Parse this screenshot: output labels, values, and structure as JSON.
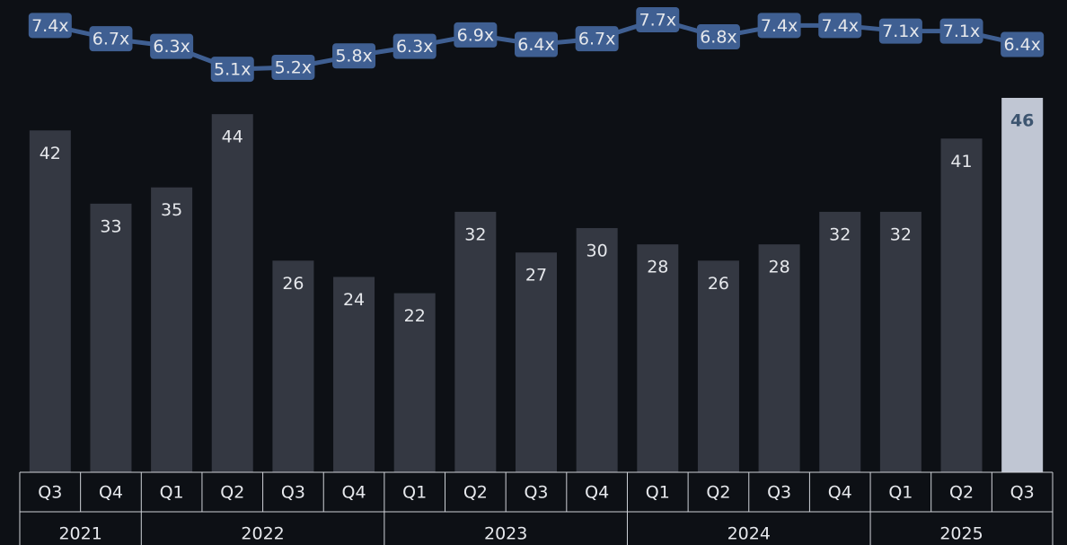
{
  "chart_data": {
    "type": "combo",
    "categories": [
      "Q3",
      "Q4",
      "Q1",
      "Q2",
      "Q3",
      "Q4",
      "Q1",
      "Q2",
      "Q3",
      "Q4",
      "Q1",
      "Q2",
      "Q3",
      "Q4",
      "Q1",
      "Q2",
      "Q3"
    ],
    "category_groups": [
      {
        "label": "2021",
        "count": 2
      },
      {
        "label": "2022",
        "count": 4
      },
      {
        "label": "2023",
        "count": 4
      },
      {
        "label": "2024",
        "count": 4
      },
      {
        "label": "2025",
        "count": 3
      }
    ],
    "ylim": [
      0,
      46
    ],
    "y2lim": [
      3,
      8
    ],
    "series": [
      {
        "type": "bar",
        "color": "#343842",
        "highlight_color": "#c0c6d3",
        "highlight_index": 16,
        "values": [
          42,
          33,
          35,
          44,
          26,
          24,
          22,
          32,
          27,
          30,
          28,
          26,
          28,
          32,
          32,
          41,
          46
        ]
      },
      {
        "type": "line",
        "axis": "y2",
        "color": "#3f5f92",
        "values": [
          7.4,
          6.7,
          6.3,
          5.1,
          5.2,
          5.8,
          6.3,
          6.9,
          6.4,
          6.7,
          7.7,
          6.8,
          7.4,
          7.4,
          7.1,
          7.1,
          6.4
        ],
        "value_labels": [
          "7.4x",
          "6.7x",
          "6.3x",
          "5.1x",
          "5.2x",
          "5.8x",
          "6.3x",
          "6.9x",
          "6.4x",
          "6.7x",
          "7.7x",
          "6.8x",
          "7.4x",
          "7.4x",
          "7.1x",
          "7.1x",
          "6.4x"
        ]
      }
    ]
  }
}
